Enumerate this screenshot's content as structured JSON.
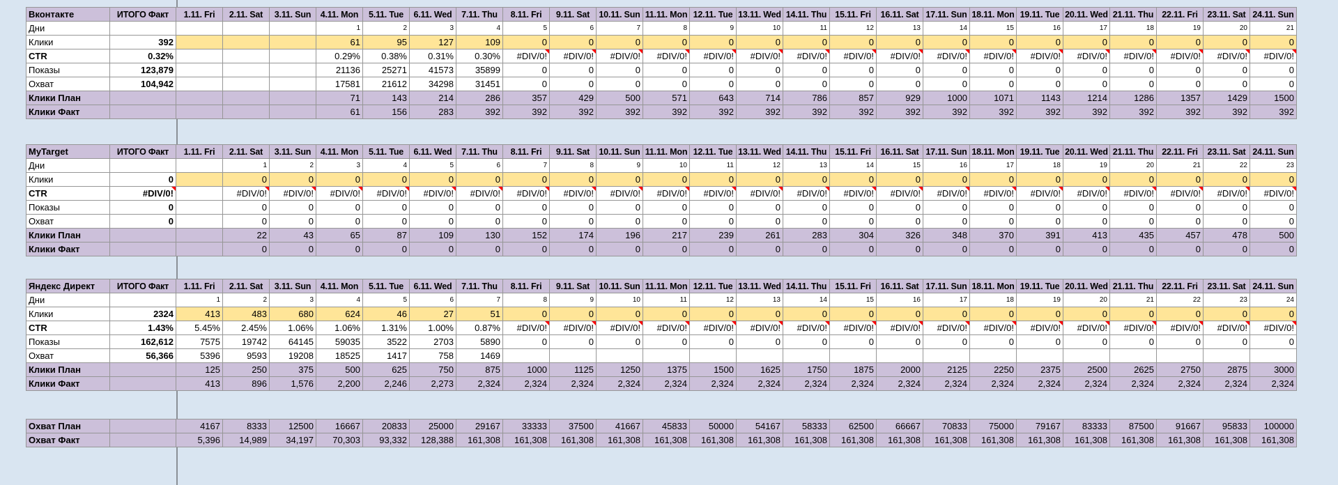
{
  "colors": {
    "background": "#d9e5f1",
    "header-purple": "#ccc0da",
    "highlight-yellow": "#ffe598",
    "grid-border": "#969696",
    "error-red": "#ff0000"
  },
  "columns": {
    "totals_header": "ИТОГО Факт",
    "dates": [
      "1.11. Fri",
      "2.11. Sat",
      "3.11. Sun",
      "4.11. Mon",
      "5.11. Tue",
      "6.11. Wed",
      "7.11. Thu",
      "8.11. Fri",
      "9.11. Sat",
      "10.11. Sun",
      "11.11. Mon",
      "12.11. Tue",
      "13.11. Wed",
      "14.11. Thu",
      "15.11. Fri",
      "16.11. Sat",
      "17.11. Sun",
      "18.11. Mon",
      "19.11. Tue",
      "20.11. Wed",
      "21.11. Thu",
      "22.11. Fri",
      "23.11. Sat",
      "24.11. Sun"
    ]
  },
  "blocks": [
    {
      "slug": "vkontakte",
      "title": "Вконтакте",
      "has_header": true,
      "rows": [
        {
          "slug": "days",
          "label": "Дни",
          "style": "days",
          "total": "",
          "values": [
            "",
            "",
            "",
            "1",
            "2",
            "3",
            "4",
            "5",
            "6",
            "7",
            "8",
            "9",
            "10",
            "11",
            "12",
            "13",
            "14",
            "15",
            "16",
            "17",
            "18",
            "19",
            "20",
            "21"
          ]
        },
        {
          "slug": "clicks",
          "label": "Клики",
          "style": "clicks",
          "total": "392",
          "values": [
            "",
            "",
            "",
            "61",
            "95",
            "127",
            "109",
            "0",
            "0",
            "0",
            "0",
            "0",
            "0",
            "0",
            "0",
            "0",
            "0",
            "0",
            "0",
            "0",
            "0",
            "0",
            "0",
            "0"
          ]
        },
        {
          "slug": "ctr",
          "label": "CTR",
          "style": "ctr",
          "total": "0.32%",
          "values": [
            "",
            "",
            "",
            "0.29%",
            "0.38%",
            "0.31%",
            "0.30%",
            "#DIV/0!",
            "#DIV/0!",
            "#DIV/0!",
            "#DIV/0!",
            "#DIV/0!",
            "#DIV/0!",
            "#DIV/0!",
            "#DIV/0!",
            "#DIV/0!",
            "#DIV/0!",
            "#DIV/0!",
            "#DIV/0!",
            "#DIV/0!",
            "#DIV/0!",
            "#DIV/0!",
            "#DIV/0!",
            "#DIV/0!"
          ]
        },
        {
          "slug": "shows",
          "label": "Показы",
          "style": "plain",
          "total": "123,879",
          "values": [
            "",
            "",
            "",
            "21136",
            "25271",
            "41573",
            "35899",
            "0",
            "0",
            "0",
            "0",
            "0",
            "0",
            "0",
            "0",
            "0",
            "0",
            "0",
            "0",
            "0",
            "0",
            "0",
            "0",
            "0"
          ]
        },
        {
          "slug": "reach",
          "label": "Охват",
          "style": "plain",
          "total": "104,942",
          "values": [
            "",
            "",
            "",
            "17581",
            "21612",
            "34298",
            "31451",
            "0",
            "0",
            "0",
            "0",
            "0",
            "0",
            "0",
            "0",
            "0",
            "0",
            "0",
            "0",
            "0",
            "0",
            "0",
            "0",
            "0"
          ]
        },
        {
          "slug": "clicks-plan",
          "label": "Клики План",
          "style": "plan",
          "total": "",
          "values": [
            "",
            "",
            "",
            "71",
            "143",
            "214",
            "286",
            "357",
            "429",
            "500",
            "571",
            "643",
            "714",
            "786",
            "857",
            "929",
            "1000",
            "1071",
            "1143",
            "1214",
            "1286",
            "1357",
            "1429",
            "1500"
          ]
        },
        {
          "slug": "clicks-fact",
          "label": "Клики Факт",
          "style": "plan",
          "total": "",
          "values": [
            "",
            "",
            "",
            "61",
            "156",
            "283",
            "392",
            "392",
            "392",
            "392",
            "392",
            "392",
            "392",
            "392",
            "392",
            "392",
            "392",
            "392",
            "392",
            "392",
            "392",
            "392",
            "392",
            "392"
          ]
        }
      ]
    },
    {
      "slug": "mytarget",
      "title": "MyTarget",
      "has_header": true,
      "rows": [
        {
          "slug": "days",
          "label": "Дни",
          "style": "days",
          "total": "",
          "values": [
            "",
            "1",
            "2",
            "3",
            "4",
            "5",
            "6",
            "7",
            "8",
            "9",
            "10",
            "11",
            "12",
            "13",
            "14",
            "15",
            "16",
            "17",
            "18",
            "19",
            "20",
            "21",
            "22",
            "23"
          ]
        },
        {
          "slug": "clicks",
          "label": "Клики",
          "style": "clicks",
          "total": "0",
          "values": [
            "",
            "0",
            "0",
            "0",
            "0",
            "0",
            "0",
            "0",
            "0",
            "0",
            "0",
            "0",
            "0",
            "0",
            "0",
            "0",
            "0",
            "0",
            "0",
            "0",
            "0",
            "0",
            "0",
            "0"
          ]
        },
        {
          "slug": "ctr",
          "label": "CTR",
          "style": "ctr",
          "total": "#DIV/0!",
          "values": [
            "",
            "#DIV/0!",
            "#DIV/0!",
            "#DIV/0!",
            "#DIV/0!",
            "#DIV/0!",
            "#DIV/0!",
            "#DIV/0!",
            "#DIV/0!",
            "#DIV/0!",
            "#DIV/0!",
            "#DIV/0!",
            "#DIV/0!",
            "#DIV/0!",
            "#DIV/0!",
            "#DIV/0!",
            "#DIV/0!",
            "#DIV/0!",
            "#DIV/0!",
            "#DIV/0!",
            "#DIV/0!",
            "#DIV/0!",
            "#DIV/0!",
            "#DIV/0!"
          ]
        },
        {
          "slug": "shows",
          "label": "Показы",
          "style": "plain",
          "total": "0",
          "values": [
            "",
            "0",
            "0",
            "0",
            "0",
            "0",
            "0",
            "0",
            "0",
            "0",
            "0",
            "0",
            "0",
            "0",
            "0",
            "0",
            "0",
            "0",
            "0",
            "0",
            "0",
            "0",
            "0",
            "0"
          ]
        },
        {
          "slug": "reach",
          "label": "Охват",
          "style": "plain",
          "total": "0",
          "values": [
            "",
            "0",
            "0",
            "0",
            "0",
            "0",
            "0",
            "0",
            "0",
            "0",
            "0",
            "0",
            "0",
            "0",
            "0",
            "0",
            "0",
            "0",
            "0",
            "0",
            "0",
            "0",
            "0",
            "0"
          ]
        },
        {
          "slug": "clicks-plan",
          "label": "Клики План",
          "style": "plan",
          "total": "",
          "values": [
            "",
            "22",
            "43",
            "65",
            "87",
            "109",
            "130",
            "152",
            "174",
            "196",
            "217",
            "239",
            "261",
            "283",
            "304",
            "326",
            "348",
            "370",
            "391",
            "413",
            "435",
            "457",
            "478",
            "500"
          ]
        },
        {
          "slug": "clicks-fact",
          "label": "Клики Факт",
          "style": "plan",
          "total": "",
          "values": [
            "",
            "0",
            "0",
            "0",
            "0",
            "0",
            "0",
            "0",
            "0",
            "0",
            "0",
            "0",
            "0",
            "0",
            "0",
            "0",
            "0",
            "0",
            "0",
            "0",
            "0",
            "0",
            "0",
            "0"
          ]
        }
      ]
    },
    {
      "slug": "yandex-direct",
      "title": "Яндекс Директ",
      "has_header": true,
      "rows": [
        {
          "slug": "days",
          "label": "Дни",
          "style": "days",
          "total": "",
          "values": [
            "1",
            "2",
            "3",
            "4",
            "5",
            "6",
            "7",
            "8",
            "9",
            "10",
            "11",
            "12",
            "13",
            "14",
            "15",
            "16",
            "17",
            "18",
            "19",
            "20",
            "21",
            "22",
            "23",
            "24"
          ]
        },
        {
          "slug": "clicks",
          "label": "Клики",
          "style": "clicks",
          "total": "2324",
          "values": [
            "413",
            "483",
            "680",
            "624",
            "46",
            "27",
            "51",
            "0",
            "0",
            "0",
            "0",
            "0",
            "0",
            "0",
            "0",
            "0",
            "0",
            "0",
            "0",
            "0",
            "0",
            "0",
            "0",
            "0"
          ]
        },
        {
          "slug": "ctr",
          "label": "CTR",
          "style": "ctr",
          "total": "1.43%",
          "values": [
            "5.45%",
            "2.45%",
            "1.06%",
            "1.06%",
            "1.31%",
            "1.00%",
            "0.87%",
            "#DIV/0!",
            "#DIV/0!",
            "#DIV/0!",
            "#DIV/0!",
            "#DIV/0!",
            "#DIV/0!",
            "#DIV/0!",
            "#DIV/0!",
            "#DIV/0!",
            "#DIV/0!",
            "#DIV/0!",
            "#DIV/0!",
            "#DIV/0!",
            "#DIV/0!",
            "#DIV/0!",
            "#DIV/0!",
            "#DIV/0!"
          ]
        },
        {
          "slug": "shows",
          "label": "Показы",
          "style": "plain",
          "total": "162,612",
          "values": [
            "7575",
            "19742",
            "64145",
            "59035",
            "3522",
            "2703",
            "5890",
            "0",
            "0",
            "0",
            "0",
            "0",
            "0",
            "0",
            "0",
            "0",
            "0",
            "0",
            "0",
            "0",
            "0",
            "0",
            "0",
            "0"
          ]
        },
        {
          "slug": "reach",
          "label": "Охват",
          "style": "plain",
          "total": "56,366",
          "values": [
            "5396",
            "9593",
            "19208",
            "18525",
            "1417",
            "758",
            "1469",
            "",
            "",
            "",
            "",
            "",
            "",
            "",
            "",
            "",
            "",
            "",
            "",
            "",
            "",
            "",
            "",
            ""
          ]
        },
        {
          "slug": "clicks-plan",
          "label": "Клики План",
          "style": "plan",
          "total": "",
          "values": [
            "125",
            "250",
            "375",
            "500",
            "625",
            "750",
            "875",
            "1000",
            "1125",
            "1250",
            "1375",
            "1500",
            "1625",
            "1750",
            "1875",
            "2000",
            "2125",
            "2250",
            "2375",
            "2500",
            "2625",
            "2750",
            "2875",
            "3000"
          ]
        },
        {
          "slug": "clicks-fact",
          "label": "Клики Факт",
          "style": "plan",
          "total": "",
          "values": [
            "413",
            "896",
            "1,576",
            "2,200",
            "2,246",
            "2,273",
            "2,324",
            "2,324",
            "2,324",
            "2,324",
            "2,324",
            "2,324",
            "2,324",
            "2,324",
            "2,324",
            "2,324",
            "2,324",
            "2,324",
            "2,324",
            "2,324",
            "2,324",
            "2,324",
            "2,324",
            "2,324"
          ]
        }
      ]
    },
    {
      "slug": "reach-summary",
      "title": "",
      "has_header": false,
      "rows": [
        {
          "slug": "reach-plan",
          "label": "Охват План",
          "style": "plan",
          "total": "",
          "values": [
            "4167",
            "8333",
            "12500",
            "16667",
            "20833",
            "25000",
            "29167",
            "33333",
            "37500",
            "41667",
            "45833",
            "50000",
            "54167",
            "58333",
            "62500",
            "66667",
            "70833",
            "75000",
            "79167",
            "83333",
            "87500",
            "91667",
            "95833",
            "100000"
          ]
        },
        {
          "slug": "reach-fact",
          "label": "Охват Факт",
          "style": "plan",
          "total": "",
          "values": [
            "5,396",
            "14,989",
            "34,197",
            "70,303",
            "93,332",
            "128,388",
            "161,308",
            "161,308",
            "161,308",
            "161,308",
            "161,308",
            "161,308",
            "161,308",
            "161,308",
            "161,308",
            "161,308",
            "161,308",
            "161,308",
            "161,308",
            "161,308",
            "161,308",
            "161,308",
            "161,308",
            "161,308"
          ]
        }
      ]
    }
  ]
}
